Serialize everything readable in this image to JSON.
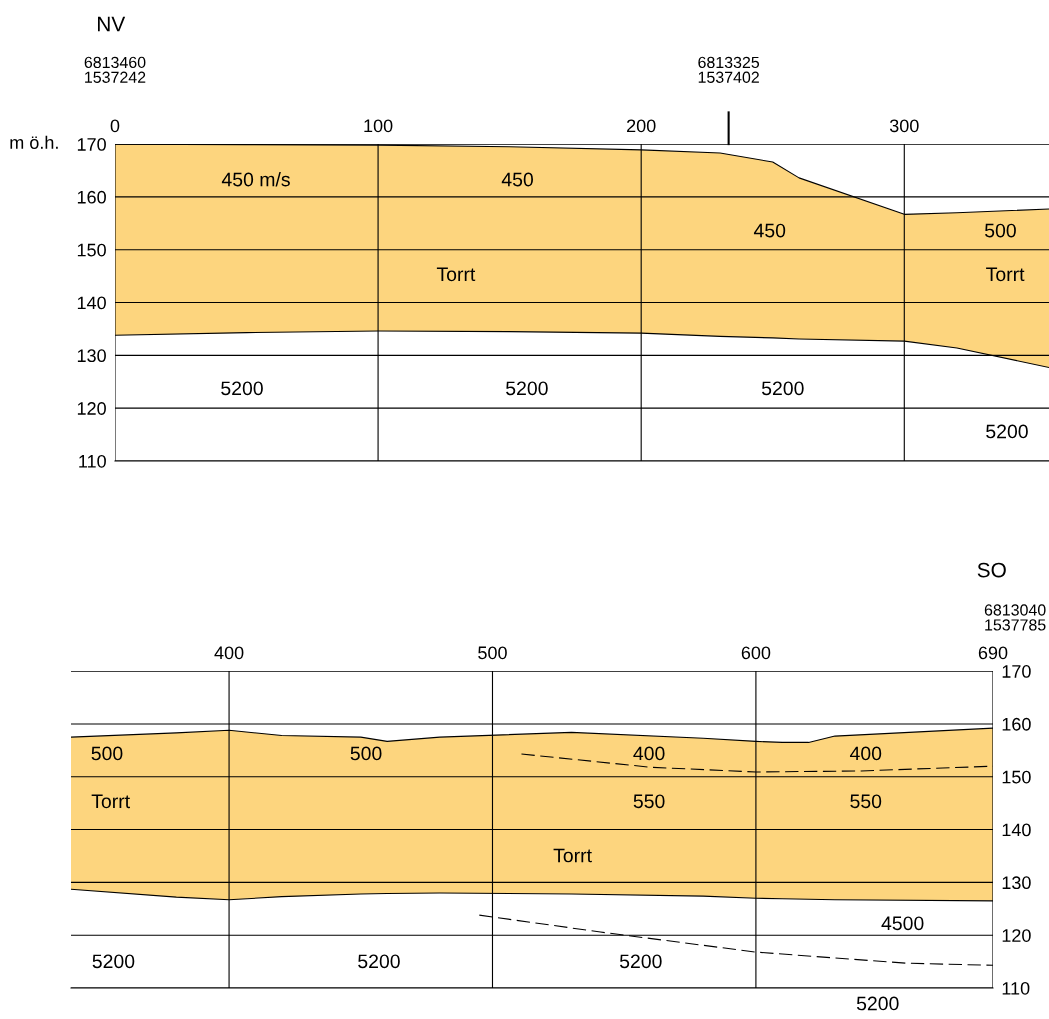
{
  "chart_data": [
    {
      "type": "area",
      "title": "NV",
      "ylabel": "m ö.h.",
      "xlim": [
        0,
        355
      ],
      "ylim": [
        110,
        170
      ],
      "xticks": [
        0,
        100,
        200,
        300
      ],
      "yticks": [
        110,
        120,
        130,
        140,
        150,
        160,
        170
      ],
      "grid": true,
      "series": [
        {
          "color": "#fdd57e",
          "x": [
            0,
            50,
            100,
            150,
            200,
            230,
            250,
            260,
            300,
            320,
            355
          ],
          "values": [
            170,
            169.9,
            169.8,
            169.5,
            168.9,
            168.3,
            166.6,
            163.6,
            156.7,
            157,
            157.7
          ]
        },
        {
          "type": "line",
          "color": "#000000",
          "x": [
            0,
            50,
            100,
            150,
            200,
            230,
            250,
            260,
            300,
            320,
            355
          ],
          "values": [
            133.8,
            134.3,
            134.6,
            134.5,
            134.2,
            133.6,
            133.3,
            133.1,
            132.7,
            131.4,
            127.7
          ]
        }
      ],
      "annotations": [
        "6813460\n1537242",
        "6813325\n1537402",
        "450 m/s",
        "450",
        "450",
        "500",
        "Torrt",
        "Torrt",
        "5200",
        "5200",
        "5200",
        "5200"
      ]
    },
    {
      "type": "area",
      "title": "SO",
      "xlim": [
        340,
        690
      ],
      "ylim": [
        110,
        170
      ],
      "xticks": [
        400,
        500,
        600,
        690
      ],
      "yticks": [
        110,
        120,
        130,
        140,
        150,
        160,
        170
      ],
      "grid": true,
      "series": [
        {
          "color": "#fdd57e",
          "x": [
            340,
            380,
            400,
            420,
            450,
            460,
            480,
            530,
            580,
            600,
            610,
            620,
            630,
            690
          ],
          "values": [
            157.5,
            158.3,
            158.8,
            157.8,
            157.5,
            156.7,
            157.5,
            158.4,
            157.3,
            156.7,
            156.5,
            156.5,
            157.7,
            159.2
          ]
        },
        {
          "type": "line",
          "color": "#000000",
          "x": [
            340,
            380,
            400,
            420,
            450,
            460,
            480,
            530,
            580,
            600,
            610,
            620,
            630,
            690
          ],
          "values": [
            128.7,
            127.2,
            126.7,
            127.3,
            127.8,
            127.9,
            128,
            127.8,
            127.4,
            127,
            126.9,
            126.8,
            126.7,
            126.5
          ]
        },
        {
          "type": "line",
          "color": "#000000",
          "line_style": "dashed",
          "x": [
            511,
            560,
            600,
            640,
            690
          ],
          "values": [
            154.3,
            151.8,
            150.9,
            151.1,
            152
          ]
        },
        {
          "type": "line",
          "color": "#000000",
          "line_style": "dashed",
          "x": [
            495,
            541,
            600,
            657,
            690
          ],
          "values": [
            123.8,
            120.6,
            116.8,
            114.7,
            114.3
          ]
        }
      ],
      "annotations": [
        "6813040\n1537785",
        "500",
        "500",
        "400",
        "400",
        "Torrt",
        "550",
        "550",
        "Torrt",
        "4500",
        "5200",
        "5200",
        "5200",
        "5200"
      ]
    }
  ]
}
